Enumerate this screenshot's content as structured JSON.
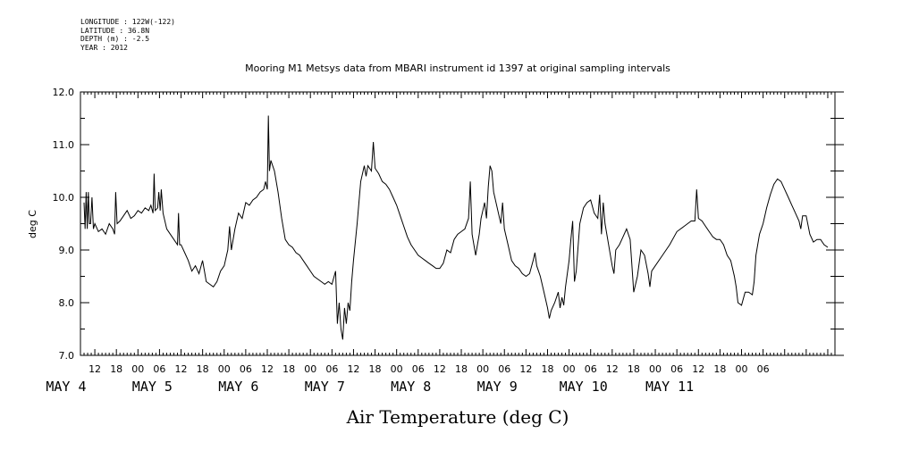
{
  "metadata": {
    "longitude": "LONGITUDE : 122W(-122)",
    "latitude": "LATITUDE : 36.8N",
    "depth": "DEPTH (m) : -2.5",
    "year": "YEAR : 2012"
  },
  "chart_data": {
    "type": "line",
    "title": "Mooring M1 Metsys data from MBARI instrument id 1397 at original sampling intervals",
    "xlabel": "Air Temperature (deg C)",
    "ylabel": "deg C",
    "ylim": [
      7.0,
      12.0
    ],
    "yticks": [
      "7.0",
      "8.0",
      "9.0",
      "10.0",
      "11.0",
      "12.0"
    ],
    "xlim_hours_note": "x values are hours since 2012-05-04 00:00",
    "hour_ticks": [
      "12",
      "18",
      "00",
      "06",
      "12",
      "18",
      "00",
      "06",
      "12",
      "18",
      "00",
      "06",
      "12",
      "18",
      "00",
      "06",
      "12",
      "18",
      "00",
      "06",
      "12",
      "18",
      "00",
      "06",
      "12",
      "18",
      "00",
      "06",
      "12",
      "18",
      "00",
      "06"
    ],
    "day_labels": [
      "MAY  4",
      "MAY  5",
      "MAY  6",
      "MAY  7",
      "MAY  8",
      "MAY  9",
      "MAY 10",
      "MAY 11"
    ],
    "grid": false,
    "series": [
      {
        "values": [
          [
            9.0,
            9.9
          ],
          [
            9.3,
            9.4
          ],
          [
            9.6,
            10.1
          ],
          [
            9.9,
            9.4
          ],
          [
            10.2,
            10.1
          ],
          [
            10.5,
            9.5
          ],
          [
            10.8,
            9.5
          ],
          [
            11.2,
            10.0
          ],
          [
            11.6,
            9.4
          ],
          [
            12.0,
            9.5
          ],
          [
            13.0,
            9.35
          ],
          [
            14.0,
            9.4
          ],
          [
            15.0,
            9.3
          ],
          [
            16.0,
            9.5
          ],
          [
            17.0,
            9.4
          ],
          [
            17.5,
            9.3
          ],
          [
            17.8,
            10.1
          ],
          [
            18.2,
            9.5
          ],
          [
            19.0,
            9.55
          ],
          [
            20.0,
            9.65
          ],
          [
            21.0,
            9.75
          ],
          [
            22.0,
            9.6
          ],
          [
            23.0,
            9.65
          ],
          [
            24.0,
            9.75
          ],
          [
            25.0,
            9.7
          ],
          [
            26.0,
            9.8
          ],
          [
            27.0,
            9.75
          ],
          [
            27.6,
            9.85
          ],
          [
            28.2,
            9.7
          ],
          [
            28.5,
            10.45
          ],
          [
            28.8,
            9.75
          ],
          [
            29.5,
            9.8
          ],
          [
            29.8,
            10.1
          ],
          [
            30.2,
            9.75
          ],
          [
            30.5,
            10.15
          ],
          [
            31.0,
            9.7
          ],
          [
            32.0,
            9.4
          ],
          [
            33.0,
            9.3
          ],
          [
            34.0,
            9.2
          ],
          [
            35.0,
            9.1
          ],
          [
            35.3,
            9.7
          ],
          [
            35.6,
            9.1
          ],
          [
            36.0,
            9.1
          ],
          [
            37.0,
            8.95
          ],
          [
            38.0,
            8.8
          ],
          [
            39.0,
            8.6
          ],
          [
            40.0,
            8.7
          ],
          [
            41.0,
            8.55
          ],
          [
            42.0,
            8.8
          ],
          [
            42.5,
            8.6
          ],
          [
            43.0,
            8.4
          ],
          [
            44.0,
            8.35
          ],
          [
            45.0,
            8.3
          ],
          [
            46.0,
            8.4
          ],
          [
            47.0,
            8.6
          ],
          [
            48.0,
            8.7
          ],
          [
            49.0,
            9.0
          ],
          [
            49.5,
            9.45
          ],
          [
            50.0,
            9.0
          ],
          [
            51.0,
            9.4
          ],
          [
            52.0,
            9.7
          ],
          [
            53.0,
            9.6
          ],
          [
            54.0,
            9.9
          ],
          [
            55.0,
            9.85
          ],
          [
            56.0,
            9.95
          ],
          [
            57.0,
            10.0
          ],
          [
            58.0,
            10.1
          ],
          [
            59.0,
            10.15
          ],
          [
            59.5,
            10.3
          ],
          [
            60.0,
            10.15
          ],
          [
            60.3,
            11.55
          ],
          [
            60.6,
            10.5
          ],
          [
            61.0,
            10.7
          ],
          [
            62.0,
            10.5
          ],
          [
            63.0,
            10.1
          ],
          [
            64.0,
            9.6
          ],
          [
            65.0,
            9.2
          ],
          [
            66.0,
            9.1
          ],
          [
            67.0,
            9.05
          ],
          [
            68.0,
            8.95
          ],
          [
            69.0,
            8.9
          ],
          [
            70.0,
            8.8
          ],
          [
            71.0,
            8.7
          ],
          [
            72.0,
            8.6
          ],
          [
            73.0,
            8.5
          ],
          [
            74.0,
            8.45
          ],
          [
            75.0,
            8.4
          ],
          [
            76.0,
            8.35
          ],
          [
            77.0,
            8.4
          ],
          [
            78.0,
            8.35
          ],
          [
            79.0,
            8.6
          ],
          [
            79.5,
            7.6
          ],
          [
            80.0,
            8.0
          ],
          [
            80.5,
            7.5
          ],
          [
            81.0,
            7.3
          ],
          [
            81.5,
            7.9
          ],
          [
            82.0,
            7.6
          ],
          [
            82.5,
            8.0
          ],
          [
            83.0,
            7.85
          ],
          [
            83.5,
            8.4
          ],
          [
            84.0,
            8.8
          ],
          [
            85.0,
            9.5
          ],
          [
            86.0,
            10.3
          ],
          [
            87.0,
            10.6
          ],
          [
            87.5,
            10.4
          ],
          [
            88.0,
            10.6
          ],
          [
            89.0,
            10.5
          ],
          [
            89.5,
            11.05
          ],
          [
            90.0,
            10.55
          ],
          [
            91.0,
            10.45
          ],
          [
            92.0,
            10.3
          ],
          [
            93.0,
            10.25
          ],
          [
            94.0,
            10.15
          ],
          [
            95.0,
            10.0
          ],
          [
            96.0,
            9.85
          ],
          [
            97.0,
            9.65
          ],
          [
            98.0,
            9.45
          ],
          [
            99.0,
            9.25
          ],
          [
            100.0,
            9.1
          ],
          [
            101.0,
            9.0
          ],
          [
            102.0,
            8.9
          ],
          [
            103.0,
            8.85
          ],
          [
            104.0,
            8.8
          ],
          [
            105.0,
            8.75
          ],
          [
            106.0,
            8.7
          ],
          [
            107.0,
            8.65
          ],
          [
            108.0,
            8.65
          ],
          [
            109.0,
            8.75
          ],
          [
            110.0,
            9.0
          ],
          [
            111.0,
            8.95
          ],
          [
            112.0,
            9.2
          ],
          [
            113.0,
            9.3
          ],
          [
            114.0,
            9.35
          ],
          [
            115.0,
            9.4
          ],
          [
            116.0,
            9.6
          ],
          [
            116.5,
            10.3
          ],
          [
            117.0,
            9.3
          ],
          [
            118.0,
            8.9
          ],
          [
            119.0,
            9.3
          ],
          [
            119.5,
            9.6
          ],
          [
            120.0,
            9.75
          ],
          [
            120.5,
            9.9
          ],
          [
            121.0,
            9.6
          ],
          [
            121.5,
            10.2
          ],
          [
            122.0,
            10.6
          ],
          [
            122.5,
            10.5
          ],
          [
            123.0,
            10.1
          ],
          [
            124.0,
            9.8
          ],
          [
            125.0,
            9.5
          ],
          [
            125.5,
            9.9
          ],
          [
            126.0,
            9.4
          ],
          [
            127.0,
            9.1
          ],
          [
            128.0,
            8.8
          ],
          [
            129.0,
            8.7
          ],
          [
            130.0,
            8.65
          ],
          [
            131.0,
            8.55
          ],
          [
            132.0,
            8.5
          ],
          [
            133.0,
            8.55
          ],
          [
            134.0,
            8.8
          ],
          [
            134.5,
            8.95
          ],
          [
            135.0,
            8.7
          ],
          [
            136.0,
            8.5
          ],
          [
            137.0,
            8.2
          ],
          [
            138.0,
            7.9
          ],
          [
            138.5,
            7.7
          ],
          [
            139.0,
            7.85
          ],
          [
            140.0,
            8.0
          ],
          [
            141.0,
            8.2
          ],
          [
            141.5,
            7.9
          ],
          [
            142.0,
            8.1
          ],
          [
            142.5,
            7.95
          ],
          [
            143.0,
            8.3
          ],
          [
            144.0,
            8.8
          ],
          [
            144.5,
            9.2
          ],
          [
            145.0,
            9.55
          ],
          [
            145.5,
            8.4
          ],
          [
            146.0,
            8.6
          ],
          [
            147.0,
            9.5
          ],
          [
            148.0,
            9.8
          ],
          [
            149.0,
            9.9
          ],
          [
            150.0,
            9.95
          ],
          [
            151.0,
            9.7
          ],
          [
            152.0,
            9.6
          ],
          [
            152.5,
            10.05
          ],
          [
            153.0,
            9.3
          ],
          [
            153.5,
            9.9
          ],
          [
            154.0,
            9.5
          ],
          [
            155.0,
            9.1
          ],
          [
            156.0,
            8.7
          ],
          [
            156.5,
            8.55
          ],
          [
            157.0,
            9.0
          ],
          [
            158.0,
            9.1
          ],
          [
            159.0,
            9.25
          ],
          [
            160.0,
            9.4
          ],
          [
            161.0,
            9.2
          ],
          [
            162.0,
            8.2
          ],
          [
            163.0,
            8.5
          ],
          [
            164.0,
            9.0
          ],
          [
            165.0,
            8.9
          ],
          [
            166.0,
            8.55
          ],
          [
            166.5,
            8.3
          ],
          [
            167.0,
            8.6
          ],
          [
            168.0,
            8.7
          ],
          [
            170.0,
            8.9
          ],
          [
            172.0,
            9.1
          ],
          [
            174.0,
            9.35
          ],
          [
            176.0,
            9.45
          ],
          [
            177.0,
            9.5
          ],
          [
            178.0,
            9.55
          ],
          [
            179.0,
            9.55
          ],
          [
            179.5,
            10.15
          ],
          [
            180.0,
            9.6
          ],
          [
            181.0,
            9.55
          ],
          [
            182.0,
            9.45
          ],
          [
            183.0,
            9.35
          ],
          [
            184.0,
            9.25
          ],
          [
            185.0,
            9.2
          ],
          [
            186.0,
            9.2
          ],
          [
            187.0,
            9.1
          ],
          [
            188.0,
            8.9
          ],
          [
            189.0,
            8.8
          ],
          [
            190.0,
            8.5
          ],
          [
            190.5,
            8.3
          ],
          [
            191.0,
            8.0
          ],
          [
            192.0,
            7.95
          ],
          [
            193.0,
            8.2
          ],
          [
            194.0,
            8.2
          ],
          [
            195.0,
            8.15
          ],
          [
            195.5,
            8.4
          ],
          [
            196.0,
            8.9
          ],
          [
            197.0,
            9.3
          ],
          [
            198.0,
            9.5
          ],
          [
            199.0,
            9.8
          ],
          [
            200.0,
            10.05
          ],
          [
            201.0,
            10.25
          ],
          [
            202.0,
            10.35
          ],
          [
            203.0,
            10.3
          ],
          [
            204.0,
            10.15
          ],
          [
            205.0,
            10.0
          ],
          [
            206.0,
            9.85
          ],
          [
            207.0,
            9.7
          ],
          [
            208.0,
            9.55
          ],
          [
            208.5,
            9.4
          ],
          [
            209.0,
            9.65
          ],
          [
            210.0,
            9.65
          ],
          [
            211.0,
            9.3
          ],
          [
            212.0,
            9.15
          ],
          [
            213.0,
            9.2
          ],
          [
            214.0,
            9.2
          ],
          [
            215.0,
            9.1
          ],
          [
            216.0,
            9.05
          ]
        ]
      }
    ]
  }
}
